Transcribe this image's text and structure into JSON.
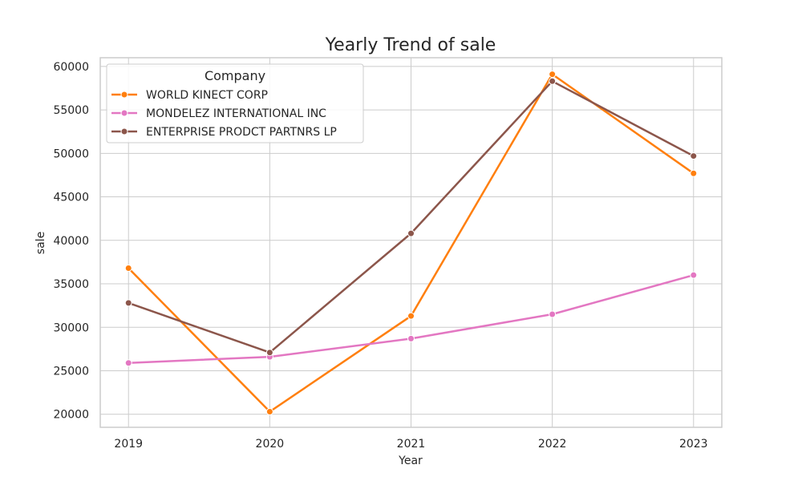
{
  "chart_data": {
    "type": "line",
    "title": "Yearly Trend of sale",
    "xlabel": "Year",
    "ylabel": "sale",
    "x": [
      2019,
      2020,
      2021,
      2022,
      2023
    ],
    "x_ticks": [
      "2019",
      "2020",
      "2021",
      "2022",
      "2023"
    ],
    "y_ticks": [
      20000,
      25000,
      30000,
      35000,
      40000,
      45000,
      50000,
      55000,
      60000
    ],
    "xlim": [
      2018.8,
      2023.2
    ],
    "ylim": [
      18500,
      61000
    ],
    "grid": true,
    "legend": {
      "title": "Company",
      "placement": "top-left"
    },
    "series": [
      {
        "name": "WORLD KINECT CORP",
        "color": "#ff7f0e",
        "values": [
          36800,
          20300,
          31300,
          59100,
          47700
        ]
      },
      {
        "name": "MONDELEZ INTERNATIONAL INC",
        "color": "#e377c2",
        "values": [
          25900,
          26600,
          28700,
          31500,
          36000
        ]
      },
      {
        "name": "ENTERPRISE PRODCT PARTNRS LP",
        "color": "#8c564b",
        "values": [
          32800,
          27100,
          40800,
          58300,
          49700
        ]
      }
    ]
  }
}
